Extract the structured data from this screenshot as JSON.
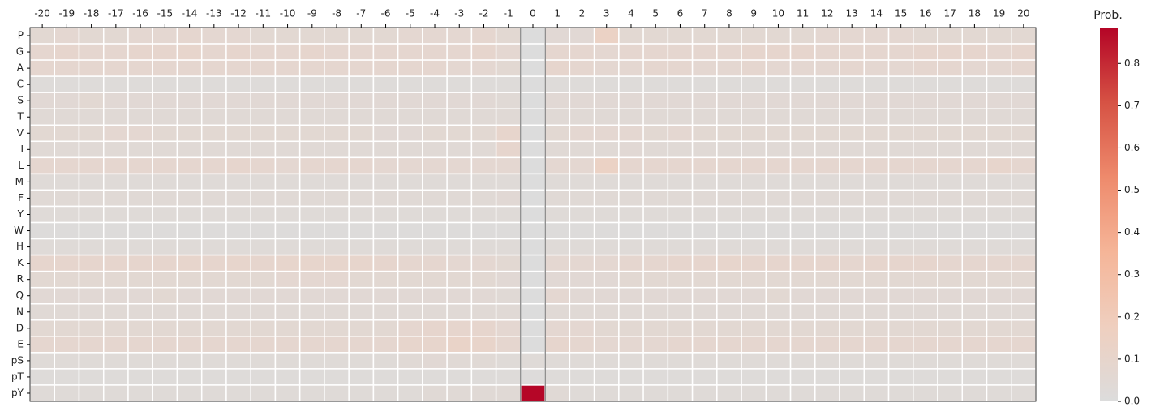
{
  "chart_data": {
    "type": "heatmap",
    "columns": [
      -20,
      -19,
      -18,
      -17,
      -16,
      -15,
      -14,
      -13,
      -12,
      -11,
      -10,
      -9,
      -8,
      -7,
      -6,
      -5,
      -4,
      -3,
      -2,
      -1,
      0,
      1,
      2,
      3,
      4,
      5,
      6,
      7,
      8,
      9,
      10,
      11,
      12,
      13,
      14,
      15,
      16,
      17,
      18,
      19,
      20
    ],
    "rows": [
      "P",
      "G",
      "A",
      "C",
      "S",
      "T",
      "V",
      "I",
      "L",
      "M",
      "F",
      "Y",
      "W",
      "H",
      "K",
      "R",
      "Q",
      "N",
      "D",
      "E",
      "pS",
      "pT",
      "pY"
    ],
    "values": [
      [
        0.06,
        0.07,
        0.06,
        0.06,
        0.07,
        0.07,
        0.08,
        0.07,
        0.07,
        0.06,
        0.06,
        0.06,
        0.06,
        0.06,
        0.06,
        0.07,
        0.07,
        0.07,
        0.08,
        0.06,
        0,
        0.05,
        0.05,
        0.14,
        0.06,
        0.06,
        0.06,
        0.06,
        0.06,
        0.06,
        0.06,
        0.06,
        0.07,
        0.07,
        0.07,
        0.07,
        0.06,
        0.06,
        0.06,
        0.06,
        0.06
      ],
      [
        0.08,
        0.09,
        0.08,
        0.08,
        0.09,
        0.09,
        0.1,
        0.08,
        0.09,
        0.08,
        0.08,
        0.09,
        0.08,
        0.08,
        0.08,
        0.08,
        0.08,
        0.08,
        0.09,
        0.07,
        0,
        0.08,
        0.08,
        0.07,
        0.08,
        0.08,
        0.08,
        0.08,
        0.08,
        0.09,
        0.09,
        0.09,
        0.08,
        0.08,
        0.08,
        0.08,
        0.09,
        0.09,
        0.09,
        0.08,
        0.09
      ],
      [
        0.08,
        0.08,
        0.08,
        0.08,
        0.08,
        0.08,
        0.08,
        0.08,
        0.08,
        0.08,
        0.08,
        0.08,
        0.08,
        0.08,
        0.08,
        0.08,
        0.08,
        0.07,
        0.07,
        0.06,
        0,
        0.09,
        0.08,
        0.07,
        0.07,
        0.08,
        0.08,
        0.07,
        0.07,
        0.08,
        0.07,
        0.07,
        0.07,
        0.08,
        0.07,
        0.07,
        0.08,
        0.08,
        0.07,
        0.07,
        0.08
      ],
      [
        0.02,
        0.02,
        0.02,
        0.02,
        0.02,
        0.02,
        0.02,
        0.02,
        0.02,
        0.02,
        0.02,
        0.02,
        0.02,
        0.02,
        0.02,
        0.02,
        0.02,
        0.02,
        0.02,
        0.02,
        0,
        0.02,
        0.02,
        0.02,
        0.02,
        0.02,
        0.02,
        0.02,
        0.02,
        0.02,
        0.02,
        0.02,
        0.02,
        0.02,
        0.02,
        0.02,
        0.02,
        0.02,
        0.02,
        0.02,
        0.02
      ],
      [
        0.05,
        0.05,
        0.06,
        0.05,
        0.05,
        0.05,
        0.05,
        0.05,
        0.05,
        0.05,
        0.05,
        0.05,
        0.05,
        0.05,
        0.05,
        0.05,
        0.05,
        0.05,
        0.05,
        0.04,
        0,
        0.05,
        0.05,
        0.05,
        0.05,
        0.05,
        0.05,
        0.05,
        0.05,
        0.05,
        0.05,
        0.05,
        0.05,
        0.05,
        0.05,
        0.05,
        0.05,
        0.05,
        0.05,
        0.05,
        0.05
      ],
      [
        0.04,
        0.04,
        0.04,
        0.04,
        0.04,
        0.04,
        0.04,
        0.04,
        0.04,
        0.04,
        0.04,
        0.04,
        0.04,
        0.04,
        0.04,
        0.04,
        0.04,
        0.04,
        0.04,
        0.04,
        0,
        0.04,
        0.04,
        0.04,
        0.04,
        0.04,
        0.04,
        0.04,
        0.04,
        0.04,
        0.04,
        0.04,
        0.04,
        0.04,
        0.04,
        0.04,
        0.04,
        0.04,
        0.04,
        0.04,
        0.04
      ],
      [
        0.06,
        0.06,
        0.06,
        0.07,
        0.07,
        0.06,
        0.06,
        0.06,
        0.06,
        0.06,
        0.06,
        0.06,
        0.06,
        0.06,
        0.05,
        0.05,
        0.06,
        0.06,
        0.06,
        0.1,
        0,
        0.06,
        0.07,
        0.07,
        0.07,
        0.06,
        0.07,
        0.06,
        0.06,
        0.06,
        0.06,
        0.06,
        0.06,
        0.06,
        0.06,
        0.06,
        0.06,
        0.06,
        0.06,
        0.06,
        0.06
      ],
      [
        0.04,
        0.04,
        0.04,
        0.04,
        0.04,
        0.04,
        0.04,
        0.04,
        0.04,
        0.04,
        0.04,
        0.04,
        0.04,
        0.04,
        0.04,
        0.04,
        0.04,
        0.04,
        0.04,
        0.09,
        0,
        0.04,
        0.04,
        0.04,
        0.05,
        0.04,
        0.04,
        0.04,
        0.04,
        0.04,
        0.04,
        0.04,
        0.04,
        0.04,
        0.04,
        0.04,
        0.04,
        0.04,
        0.04,
        0.04,
        0.04
      ],
      [
        0.08,
        0.08,
        0.08,
        0.08,
        0.08,
        0.08,
        0.08,
        0.08,
        0.09,
        0.08,
        0.07,
        0.08,
        0.08,
        0.08,
        0.07,
        0.07,
        0.07,
        0.07,
        0.07,
        0.07,
        0,
        0.07,
        0.07,
        0.14,
        0.08,
        0.08,
        0.08,
        0.08,
        0.08,
        0.08,
        0.08,
        0.08,
        0.08,
        0.08,
        0.08,
        0.08,
        0.08,
        0.08,
        0.08,
        0.1,
        0.08
      ],
      [
        0.03,
        0.03,
        0.03,
        0.03,
        0.03,
        0.03,
        0.03,
        0.03,
        0.03,
        0.03,
        0.03,
        0.03,
        0.03,
        0.03,
        0.03,
        0.03,
        0.03,
        0.03,
        0.03,
        0.03,
        0,
        0.03,
        0.03,
        0.03,
        0.03,
        0.03,
        0.03,
        0.03,
        0.03,
        0.03,
        0.03,
        0.03,
        0.03,
        0.03,
        0.03,
        0.03,
        0.03,
        0.03,
        0.03,
        0.03,
        0.03
      ],
      [
        0.04,
        0.04,
        0.04,
        0.04,
        0.04,
        0.04,
        0.04,
        0.04,
        0.04,
        0.04,
        0.04,
        0.04,
        0.04,
        0.04,
        0.04,
        0.04,
        0.04,
        0.04,
        0.04,
        0.05,
        0,
        0.04,
        0.04,
        0.04,
        0.04,
        0.04,
        0.04,
        0.04,
        0.04,
        0.04,
        0.04,
        0.04,
        0.04,
        0.04,
        0.04,
        0.04,
        0.04,
        0.04,
        0.04,
        0.04,
        0.04
      ],
      [
        0.03,
        0.03,
        0.03,
        0.03,
        0.03,
        0.03,
        0.03,
        0.03,
        0.03,
        0.03,
        0.03,
        0.03,
        0.03,
        0.03,
        0.03,
        0.03,
        0.03,
        0.03,
        0.03,
        0.03,
        0,
        0.03,
        0.03,
        0.03,
        0.03,
        0.03,
        0.03,
        0.03,
        0.03,
        0.03,
        0.03,
        0.03,
        0.03,
        0.03,
        0.03,
        0.03,
        0.03,
        0.03,
        0.03,
        0.03,
        0.03
      ],
      [
        0.01,
        0.01,
        0.01,
        0.01,
        0.01,
        0.01,
        0.01,
        0.01,
        0.01,
        0.01,
        0.01,
        0.01,
        0.01,
        0.01,
        0.01,
        0.01,
        0.01,
        0.01,
        0.01,
        0.01,
        0,
        0.01,
        0.01,
        0.01,
        0.01,
        0.01,
        0.01,
        0.01,
        0.01,
        0.01,
        0.01,
        0.01,
        0.01,
        0.01,
        0.01,
        0.01,
        0.01,
        0.01,
        0.01,
        0.01,
        0.01
      ],
      [
        0.03,
        0.03,
        0.03,
        0.03,
        0.03,
        0.03,
        0.03,
        0.03,
        0.03,
        0.03,
        0.03,
        0.03,
        0.03,
        0.03,
        0.03,
        0.03,
        0.03,
        0.03,
        0.03,
        0.03,
        0,
        0.03,
        0.03,
        0.03,
        0.03,
        0.03,
        0.03,
        0.03,
        0.03,
        0.03,
        0.03,
        0.03,
        0.03,
        0.03,
        0.03,
        0.03,
        0.03,
        0.03,
        0.03,
        0.03,
        0.03
      ],
      [
        0.09,
        0.09,
        0.09,
        0.09,
        0.09,
        0.09,
        0.1,
        0.09,
        0.1,
        0.09,
        0.1,
        0.1,
        0.1,
        0.1,
        0.09,
        0.08,
        0.08,
        0.07,
        0.07,
        0.06,
        0,
        0.07,
        0.07,
        0.07,
        0.08,
        0.08,
        0.09,
        0.09,
        0.1,
        0.09,
        0.09,
        0.09,
        0.09,
        0.08,
        0.09,
        0.09,
        0.09,
        0.08,
        0.08,
        0.08,
        0.08
      ],
      [
        0.06,
        0.06,
        0.06,
        0.06,
        0.06,
        0.06,
        0.06,
        0.06,
        0.06,
        0.06,
        0.07,
        0.07,
        0.07,
        0.06,
        0.06,
        0.06,
        0.06,
        0.06,
        0.06,
        0.05,
        0,
        0.05,
        0.05,
        0.05,
        0.06,
        0.06,
        0.06,
        0.06,
        0.06,
        0.06,
        0.06,
        0.06,
        0.06,
        0.06,
        0.06,
        0.06,
        0.06,
        0.06,
        0.06,
        0.06,
        0.06
      ],
      [
        0.05,
        0.05,
        0.05,
        0.05,
        0.05,
        0.06,
        0.05,
        0.05,
        0.05,
        0.05,
        0.05,
        0.05,
        0.05,
        0.05,
        0.05,
        0.05,
        0.05,
        0.05,
        0.05,
        0.04,
        0,
        0.07,
        0.05,
        0.05,
        0.05,
        0.05,
        0.05,
        0.05,
        0.05,
        0.05,
        0.06,
        0.05,
        0.05,
        0.05,
        0.05,
        0.05,
        0.05,
        0.05,
        0.05,
        0.05,
        0.05
      ],
      [
        0.04,
        0.04,
        0.04,
        0.04,
        0.04,
        0.04,
        0.04,
        0.04,
        0.04,
        0.04,
        0.04,
        0.04,
        0.04,
        0.04,
        0.04,
        0.04,
        0.04,
        0.04,
        0.04,
        0.04,
        0,
        0.04,
        0.04,
        0.04,
        0.04,
        0.04,
        0.04,
        0.04,
        0.04,
        0.04,
        0.04,
        0.04,
        0.04,
        0.04,
        0.04,
        0.04,
        0.04,
        0.04,
        0.04,
        0.04,
        0.04
      ],
      [
        0.06,
        0.06,
        0.06,
        0.06,
        0.06,
        0.06,
        0.06,
        0.06,
        0.06,
        0.06,
        0.06,
        0.06,
        0.06,
        0.06,
        0.06,
        0.08,
        0.09,
        0.09,
        0.09,
        0.07,
        0,
        0.07,
        0.07,
        0.06,
        0.06,
        0.06,
        0.06,
        0.06,
        0.06,
        0.06,
        0.06,
        0.06,
        0.06,
        0.06,
        0.06,
        0.06,
        0.06,
        0.06,
        0.06,
        0.06,
        0.06
      ],
      [
        0.08,
        0.08,
        0.08,
        0.08,
        0.08,
        0.08,
        0.08,
        0.08,
        0.08,
        0.08,
        0.08,
        0.08,
        0.08,
        0.08,
        0.08,
        0.1,
        0.1,
        0.12,
        0.11,
        0.08,
        0,
        0.09,
        0.08,
        0.07,
        0.07,
        0.07,
        0.08,
        0.08,
        0.08,
        0.08,
        0.08,
        0.08,
        0.08,
        0.08,
        0.08,
        0.08,
        0.08,
        0.08,
        0.08,
        0.08,
        0.08
      ],
      [
        0.03,
        0.03,
        0.03,
        0.03,
        0.03,
        0.03,
        0.03,
        0.03,
        0.03,
        0.03,
        0.03,
        0.03,
        0.03,
        0.03,
        0.03,
        0.04,
        0.05,
        0.04,
        0.04,
        0.03,
        0.03,
        0.03,
        0.03,
        0.03,
        0.03,
        0.03,
        0.03,
        0.03,
        0.03,
        0.03,
        0.03,
        0.03,
        0.03,
        0.03,
        0.03,
        0.03,
        0.03,
        0.03,
        0.03,
        0.03,
        0.03
      ],
      [
        0.02,
        0.02,
        0.02,
        0.02,
        0.02,
        0.02,
        0.02,
        0.02,
        0.02,
        0.02,
        0.02,
        0.02,
        0.02,
        0.02,
        0.02,
        0.02,
        0.02,
        0.02,
        0.02,
        0.02,
        0.01,
        0.02,
        0.02,
        0.02,
        0.02,
        0.02,
        0.02,
        0.02,
        0.02,
        0.02,
        0.02,
        0.02,
        0.02,
        0.02,
        0.02,
        0.02,
        0.02,
        0.02,
        0.02,
        0.02,
        0.02
      ],
      [
        0.03,
        0.03,
        0.03,
        0.03,
        0.03,
        0.03,
        0.03,
        0.03,
        0.03,
        0.03,
        0.03,
        0.03,
        0.03,
        0.03,
        0.03,
        0.03,
        0.04,
        0.04,
        0.04,
        0.04,
        0.88,
        0.04,
        0.03,
        0.03,
        0.03,
        0.03,
        0.03,
        0.03,
        0.03,
        0.03,
        0.03,
        0.03,
        0.03,
        0.03,
        0.03,
        0.03,
        0.03,
        0.03,
        0.03,
        0.03,
        0.03
      ]
    ],
    "colorbar_title": "Prob.",
    "zlim": [
      0,
      0.885
    ],
    "zticks": [
      {
        "value": 0,
        "label": "0.0"
      },
      0.1,
      0.2,
      0.3,
      0.4,
      0.5,
      0.6,
      0.7,
      0.8
    ],
    "colormap": [
      "#dcdcdc",
      "#efcfbf",
      "#f5b598",
      "#ee8a6c",
      "#d65244",
      "#b40426"
    ]
  }
}
